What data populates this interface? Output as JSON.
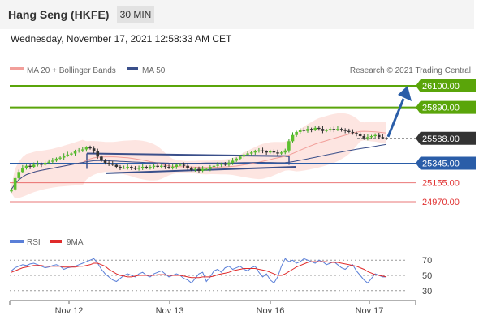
{
  "header": {
    "title": "Hang Seng (HKFE)",
    "timeframe": "30 MIN"
  },
  "date_line": "Wednesday, November 17, 2021 12:58:33 AM CET",
  "credit": "Research © 2021 Trading Central",
  "colors": {
    "green": "#5aa50a",
    "blue": "#2a5da8",
    "red": "#e03030",
    "bb_fill": "#fde0dc",
    "ma20": "#f29f9a",
    "ma50": "#3a4f8a",
    "rsi": "#5a7fd8",
    "rsi_ma": "#e02a2a"
  },
  "chart_data": [
    {
      "type": "candlestick",
      "legend": [
        "MA 20 + Bollinger Bands",
        "MA 50"
      ],
      "x_ticks": [
        "Nov 12",
        "Nov 13",
        "Nov 16",
        "Nov 17"
      ],
      "ylim": [
        24900,
        26150
      ],
      "levels": [
        {
          "value": 26100.0,
          "label": "26100.00",
          "kind": "resistance"
        },
        {
          "value": 25890.0,
          "label": "25890.00",
          "kind": "resistance"
        },
        {
          "value": 25588.0,
          "label": "25588.00",
          "kind": "last"
        },
        {
          "value": 25345.0,
          "label": "25345.00",
          "kind": "pivot"
        },
        {
          "value": 25155.0,
          "label": "25155.00",
          "kind": "support"
        },
        {
          "value": 24970.0,
          "label": "24970.00",
          "kind": "support"
        }
      ],
      "close": [
        25090,
        25200,
        25260,
        25300,
        25320,
        25310,
        25330,
        25340,
        25330,
        25350,
        25360,
        25370,
        25390,
        25400,
        25420,
        25430,
        25440,
        25460,
        25470,
        25480,
        25500,
        25490,
        25460,
        25410,
        25370,
        25350,
        25340,
        25330,
        25310,
        25300,
        25300,
        25310,
        25300,
        25290,
        25300,
        25310,
        25300,
        25310,
        25320,
        25310,
        25320,
        25310,
        25300,
        25310,
        25330,
        25330,
        25320,
        25300,
        25280,
        25290,
        25270,
        25290,
        25290,
        25310,
        25320,
        25330,
        25340,
        25330,
        25350,
        25370,
        25390,
        25410,
        25430,
        25440,
        25450,
        25460,
        25470,
        25460,
        25450,
        25460,
        25450,
        25440,
        25450,
        25470,
        25560,
        25620,
        25650,
        25670,
        25660,
        25680,
        25670,
        25690,
        25680,
        25660,
        25670,
        25680,
        25670,
        25680,
        25670,
        25660,
        25650,
        25640,
        25630,
        25610,
        25590,
        25600,
        25610,
        25620,
        25600,
        25590,
        25588
      ]
    },
    {
      "type": "line",
      "legend": [
        "RSI",
        "9MA"
      ],
      "y_ticks": [
        "70",
        "50",
        "30"
      ],
      "ylim": [
        20,
        80
      ],
      "rsi": [
        56,
        60,
        62,
        64,
        63,
        65,
        66,
        64,
        62,
        60,
        61,
        63,
        64,
        62,
        58,
        60,
        61,
        62,
        64,
        66,
        68,
        70,
        72,
        66,
        58,
        52,
        48,
        44,
        42,
        46,
        50,
        52,
        50,
        48,
        52,
        54,
        50,
        48,
        52,
        54,
        56,
        52,
        48,
        50,
        52,
        50,
        46,
        44,
        40,
        46,
        52,
        54,
        42,
        48,
        56,
        58,
        54,
        60,
        62,
        58,
        60,
        62,
        58,
        56,
        60,
        62,
        54,
        48,
        52,
        44,
        40,
        48,
        62,
        72,
        68,
        70,
        66,
        68,
        72,
        70,
        68,
        66,
        70,
        68,
        64,
        66,
        68,
        64,
        60,
        58,
        62,
        64,
        56,
        50,
        44,
        40,
        46,
        52,
        50,
        48,
        48
      ],
      "ma": [
        54,
        56,
        58,
        60,
        61,
        62,
        63,
        63,
        63,
        62,
        62,
        62,
        62,
        62,
        61,
        61,
        61,
        61,
        62,
        62,
        63,
        64,
        66,
        66,
        64,
        62,
        58,
        55,
        52,
        50,
        49,
        48,
        48,
        49,
        50,
        50,
        50,
        50,
        50,
        51,
        51,
        51,
        50,
        50,
        50,
        50,
        49,
        48,
        47,
        47,
        47,
        48,
        48,
        48,
        49,
        51,
        52,
        53,
        54,
        56,
        57,
        58,
        59,
        59,
        59,
        59,
        58,
        57,
        56,
        54,
        52,
        50,
        50,
        52,
        55,
        58,
        61,
        63,
        65,
        67,
        68,
        68,
        68,
        68,
        68,
        67,
        67,
        67,
        66,
        65,
        64,
        63,
        62,
        60,
        58,
        55,
        53,
        51,
        50,
        49,
        48
      ]
    }
  ]
}
